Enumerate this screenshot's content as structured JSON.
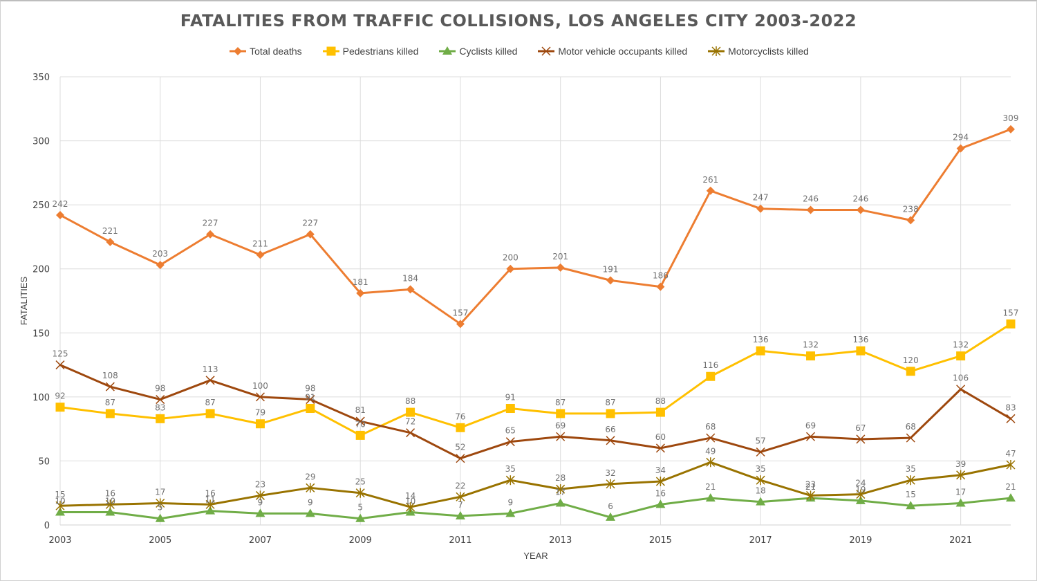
{
  "chart_data": {
    "type": "line",
    "title": "FATALITIES FROM TRAFFIC COLLISIONS, LOS ANGELES CITY 2003-2022",
    "xlabel": "YEAR",
    "ylabel": "FATALITIES",
    "ylim": [
      0,
      350
    ],
    "yticks": [
      0,
      50,
      100,
      150,
      200,
      250,
      300,
      350
    ],
    "x": [
      2003,
      2004,
      2005,
      2006,
      2007,
      2008,
      2009,
      2010,
      2011,
      2012,
      2013,
      2014,
      2015,
      2016,
      2017,
      2018,
      2019,
      2020,
      2021,
      2022
    ],
    "xtick_labels": [
      "2003",
      "2005",
      "2007",
      "2009",
      "2011",
      "2013",
      "2015",
      "2017",
      "2019",
      "2021"
    ],
    "grid": true,
    "legend_position": "top",
    "series": [
      {
        "name": "Total deaths",
        "color": "#ED7D31",
        "marker": "diamond",
        "values": [
          242,
          221,
          203,
          227,
          211,
          227,
          181,
          184,
          157,
          200,
          201,
          191,
          186,
          261,
          247,
          246,
          246,
          238,
          294,
          309
        ]
      },
      {
        "name": "Pedestrians killed",
        "color": "#FFC000",
        "marker": "square",
        "values": [
          92,
          87,
          83,
          87,
          79,
          91,
          70,
          88,
          76,
          91,
          87,
          87,
          88,
          116,
          136,
          132,
          136,
          120,
          132,
          157
        ]
      },
      {
        "name": "Cyclists killed",
        "color": "#70AD47",
        "marker": "triangle",
        "values": [
          10,
          10,
          5,
          11,
          9,
          9,
          5,
          10,
          7,
          9,
          17,
          6,
          16,
          21,
          18,
          21,
          19,
          15,
          17,
          21
        ]
      },
      {
        "name": "Motor vehicle occupants killed",
        "color": "#9E480E",
        "marker": "x",
        "values": [
          125,
          108,
          98,
          113,
          100,
          98,
          81,
          72,
          52,
          65,
          69,
          66,
          60,
          68,
          57,
          69,
          67,
          68,
          106,
          83
        ]
      },
      {
        "name": "Motorcyclists killed",
        "color": "#997300",
        "marker": "star",
        "values": [
          15,
          16,
          17,
          16,
          23,
          29,
          25,
          14,
          22,
          35,
          28,
          32,
          34,
          49,
          35,
          23,
          24,
          35,
          39,
          47
        ]
      }
    ]
  }
}
